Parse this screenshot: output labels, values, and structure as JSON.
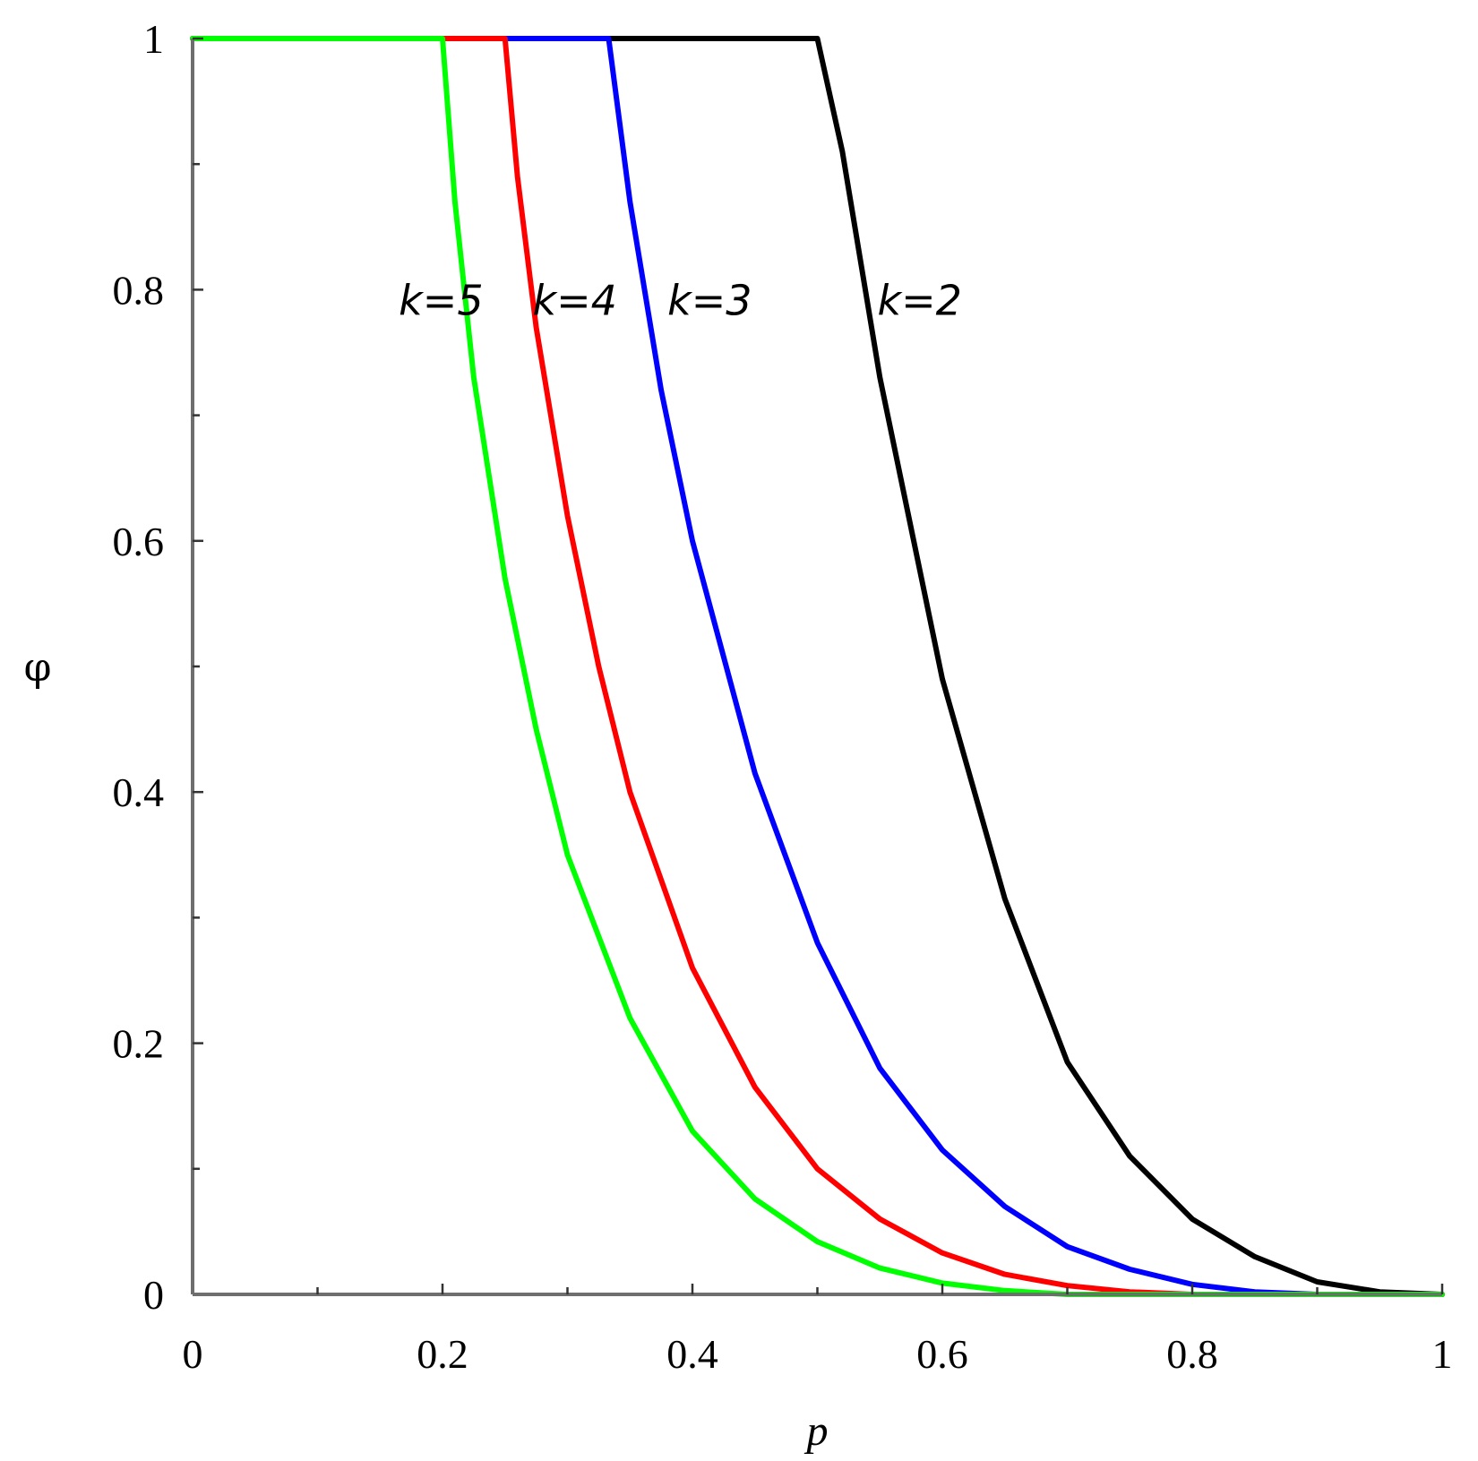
{
  "chart_data": {
    "type": "line",
    "title": "",
    "xlabel": "p",
    "ylabel": "φ",
    "xlim": [
      0,
      1
    ],
    "ylim": [
      0,
      1
    ],
    "x_ticks": [
      "0",
      "0.2",
      "0.4",
      "0.6",
      "0.8",
      "1"
    ],
    "y_ticks": [
      "0",
      "0.2",
      "0.4",
      "0.6",
      "0.8",
      "1"
    ],
    "grid": false,
    "legend": "none",
    "series": [
      {
        "name": "k=2",
        "color": "#000000",
        "x": [
          0,
          0.5,
          0.52,
          0.55,
          0.6,
          0.65,
          0.7,
          0.75,
          0.8,
          0.85,
          0.9,
          0.95,
          1.0
        ],
        "y": [
          1,
          1,
          0.91,
          0.73,
          0.49,
          0.315,
          0.185,
          0.11,
          0.06,
          0.03,
          0.01,
          0.002,
          0
        ]
      },
      {
        "name": "k=3",
        "color": "#0000ff",
        "x": [
          0,
          0.333,
          0.35,
          0.375,
          0.4,
          0.45,
          0.5,
          0.55,
          0.6,
          0.65,
          0.7,
          0.75,
          0.8,
          0.85,
          0.9,
          1.0
        ],
        "y": [
          1,
          1,
          0.87,
          0.72,
          0.6,
          0.415,
          0.28,
          0.18,
          0.115,
          0.07,
          0.038,
          0.02,
          0.008,
          0.002,
          0,
          0
        ]
      },
      {
        "name": "k=4",
        "color": "#ff0000",
        "x": [
          0,
          0.25,
          0.26,
          0.275,
          0.3,
          0.325,
          0.35,
          0.4,
          0.45,
          0.5,
          0.55,
          0.6,
          0.65,
          0.7,
          0.75,
          0.8,
          1.0
        ],
        "y": [
          1,
          1,
          0.89,
          0.77,
          0.62,
          0.5,
          0.4,
          0.26,
          0.165,
          0.1,
          0.06,
          0.033,
          0.016,
          0.007,
          0.002,
          0,
          0
        ]
      },
      {
        "name": "k=5",
        "color": "#00ff00",
        "x": [
          0,
          0.2,
          0.21,
          0.225,
          0.25,
          0.275,
          0.3,
          0.35,
          0.4,
          0.45,
          0.5,
          0.55,
          0.6,
          0.65,
          0.7,
          1.0
        ],
        "y": [
          1,
          1,
          0.87,
          0.73,
          0.57,
          0.45,
          0.35,
          0.22,
          0.13,
          0.076,
          0.042,
          0.021,
          0.009,
          0.003,
          0,
          0
        ]
      }
    ],
    "annotations": [
      {
        "text": "k=5",
        "x": 0.165,
        "y": 0.78
      },
      {
        "text": "k=4",
        "x": 0.272,
        "y": 0.78
      },
      {
        "text": "k=3",
        "x": 0.38,
        "y": 0.78
      },
      {
        "text": "k=2",
        "x": 0.548,
        "y": 0.78
      }
    ]
  }
}
